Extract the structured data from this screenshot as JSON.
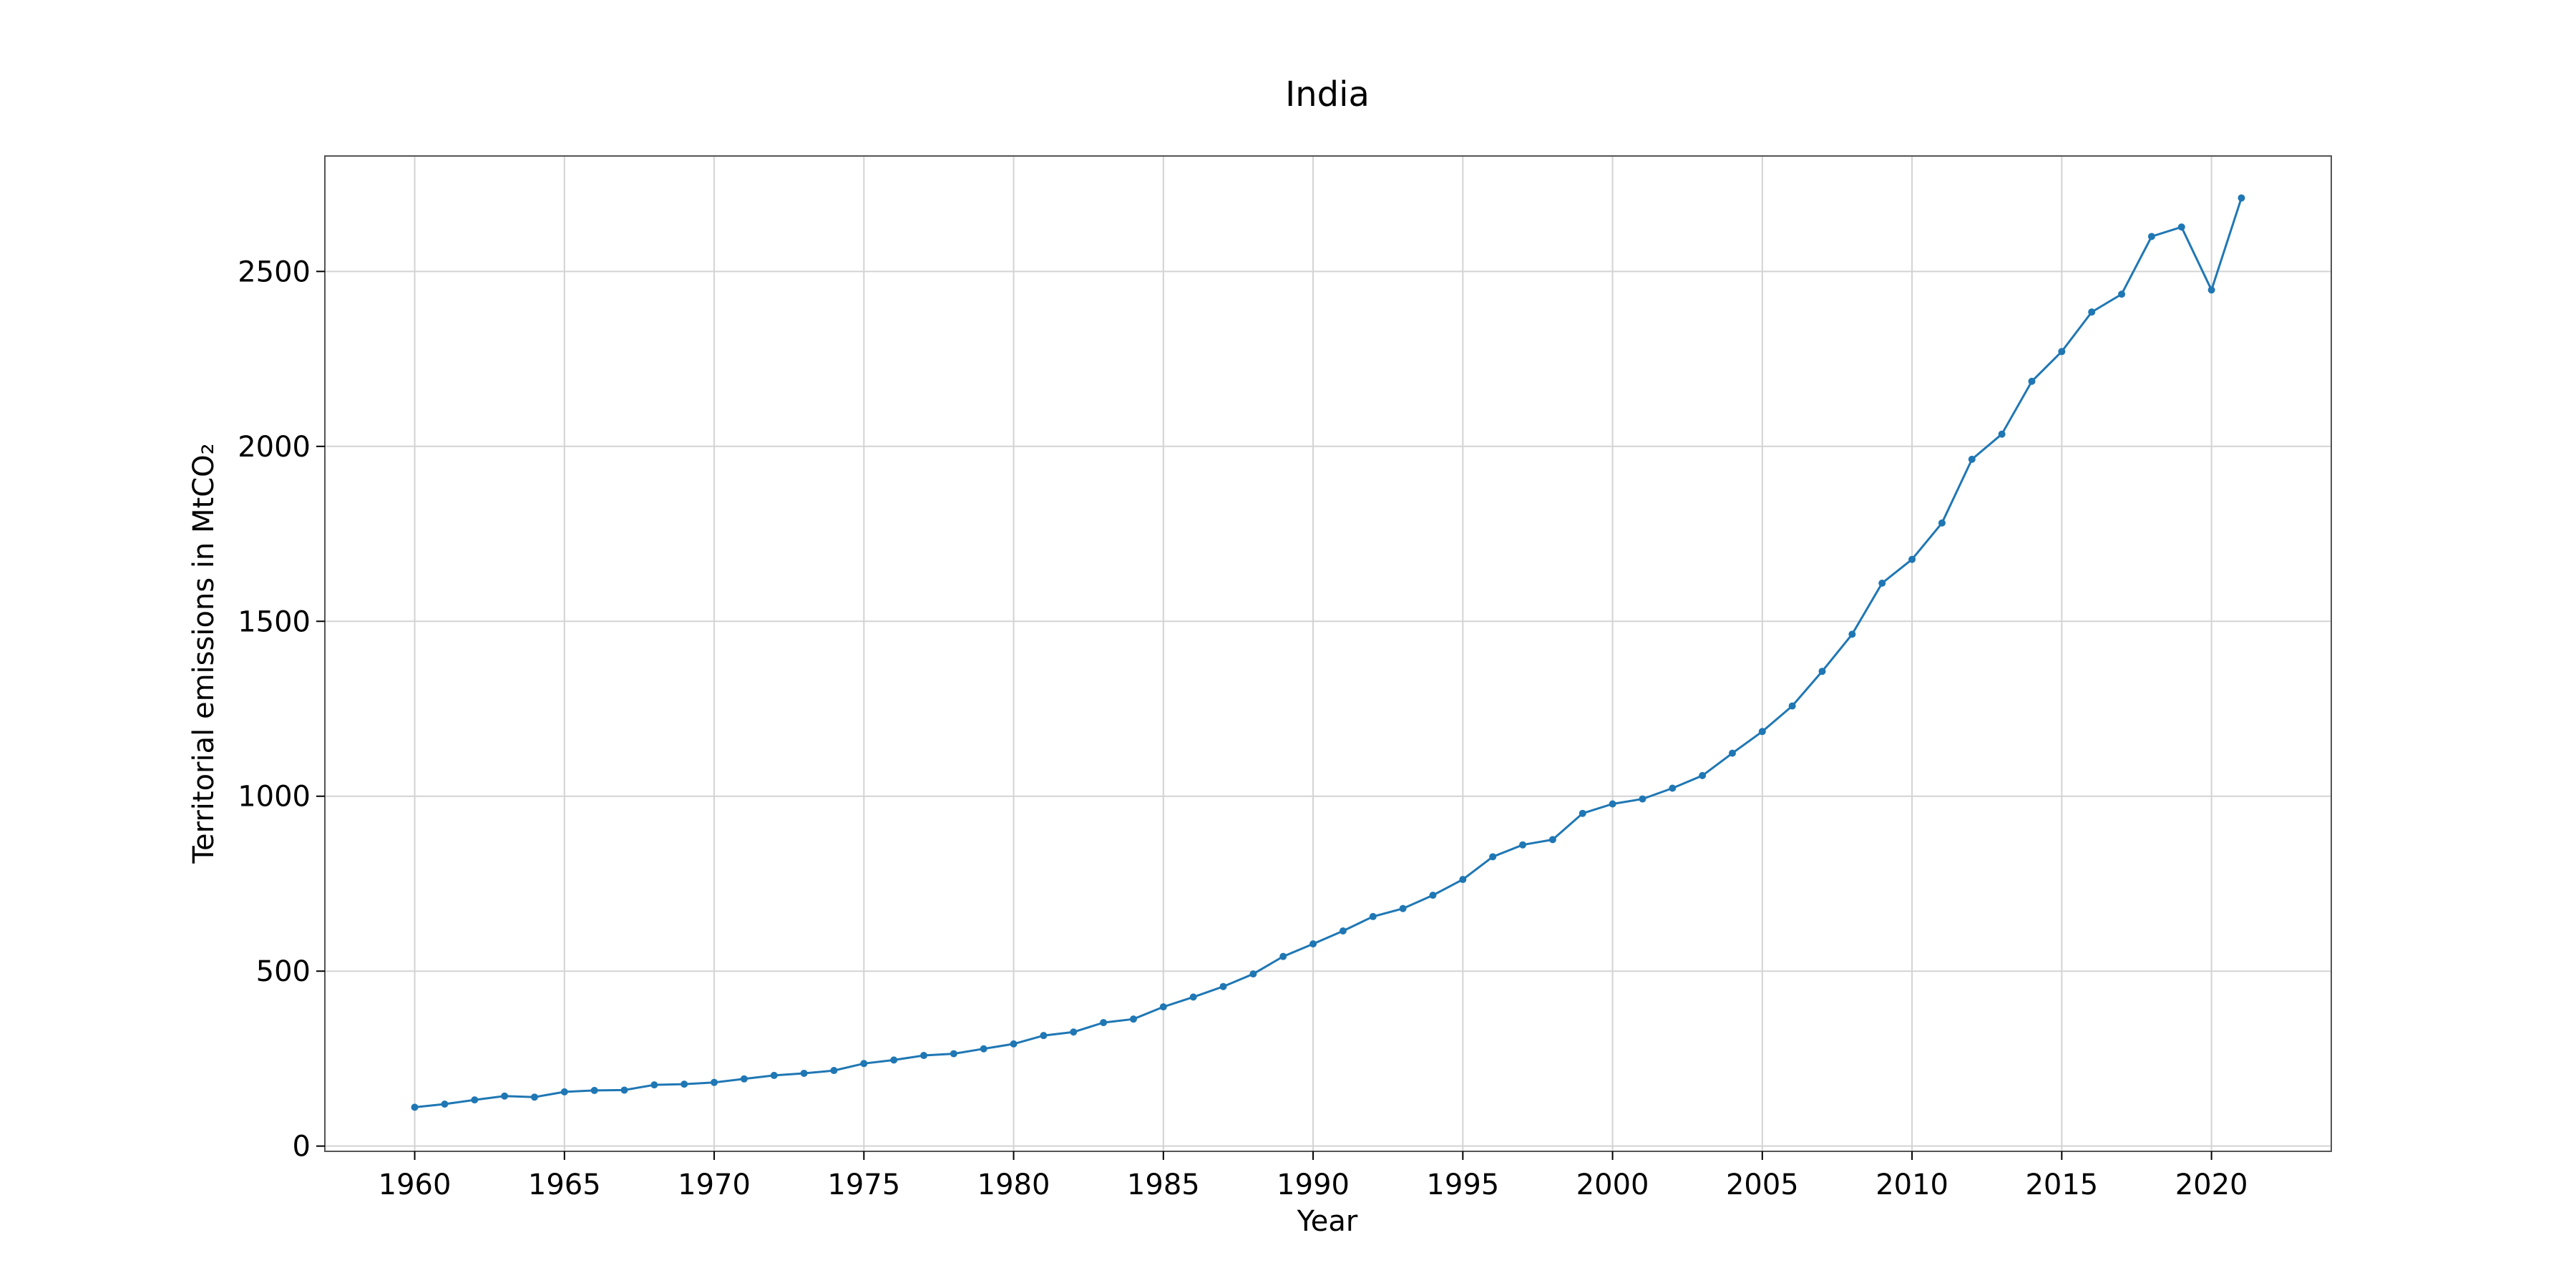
{
  "chart_data": {
    "type": "line",
    "title": "India",
    "xlabel": "Year",
    "ylabel": "Territorial emissions in MtCO₂",
    "xlim": [
      1957,
      2024
    ],
    "ylim": [
      -15,
      2830
    ],
    "xticks": [
      1960,
      1965,
      1970,
      1975,
      1980,
      1985,
      1990,
      1995,
      2000,
      2005,
      2010,
      2015,
      2020
    ],
    "yticks": [
      0,
      500,
      1000,
      1500,
      2000,
      2500
    ],
    "grid": true,
    "colors": {
      "series": "#1f77b4",
      "grid": "#d3d3d3",
      "frame": "#555555"
    },
    "series": [
      {
        "x": [
          1960,
          1961,
          1962,
          1963,
          1964,
          1965,
          1966,
          1967,
          1968,
          1969,
          1970,
          1971,
          1972,
          1973,
          1974,
          1975,
          1976,
          1977,
          1978,
          1979,
          1980,
          1981,
          1982,
          1983,
          1984,
          1985,
          1986,
          1987,
          1988,
          1989,
          1990,
          1991,
          1992,
          1993,
          1994,
          1995,
          1996,
          1997,
          1998,
          1999,
          2000,
          2001,
          2002,
          2003,
          2004,
          2005,
          2006,
          2007,
          2008,
          2009,
          2010,
          2011,
          2012,
          2013,
          2014,
          2015,
          2016,
          2017,
          2018,
          2019,
          2020,
          2021
        ],
        "values": [
          111,
          120,
          132,
          143,
          140,
          155,
          159,
          160,
          175,
          177,
          182,
          192,
          202,
          208,
          216,
          236,
          246,
          259,
          264,
          278,
          292,
          316,
          326,
          353,
          363,
          398,
          426,
          456,
          492,
          542,
          578,
          615,
          656,
          679,
          717,
          762,
          827,
          861,
          876,
          951,
          978,
          992,
          1023,
          1059,
          1123,
          1185,
          1258,
          1357,
          1463,
          1609,
          1677,
          1781,
          1963,
          2035,
          2186,
          2271,
          2384,
          2435,
          2600,
          2627,
          2447,
          2710
        ]
      }
    ]
  }
}
